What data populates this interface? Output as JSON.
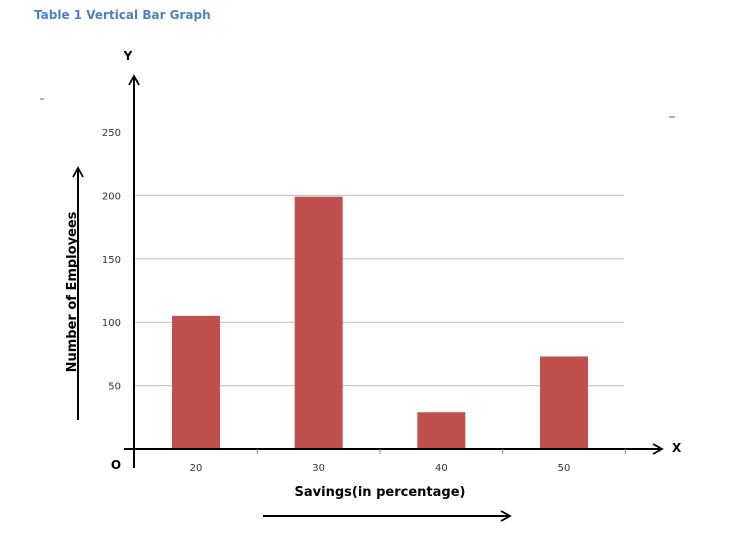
{
  "caption": "Table 1 Vertical Bar Graph",
  "chart_data": {
    "type": "bar",
    "title": "",
    "categories": [
      "20",
      "30",
      "40",
      "50"
    ],
    "values": [
      105,
      199,
      29,
      73
    ],
    "xlabel": "Savings(in percentage)",
    "ylabel": "Number of Employees",
    "x_axis_letter": "X",
    "y_axis_letter": "Y",
    "origin_label": "O",
    "ylim": [
      0,
      250
    ],
    "yticks": [
      50,
      100,
      150,
      200,
      250
    ],
    "grid": true,
    "bar_color": "#c0504d",
    "grid_color": "#bfbfbf"
  }
}
